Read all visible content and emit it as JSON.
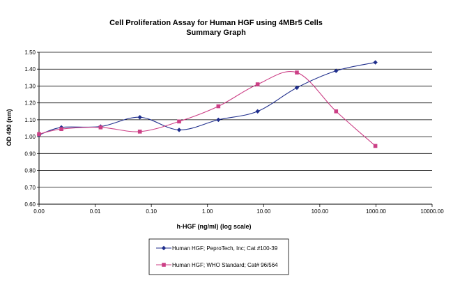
{
  "chart_data": {
    "type": "line",
    "title": "Cell Proliferation Assay for Human HGF using 4MBr5 Cells",
    "subtitle": "Summary Graph",
    "xlabel": "h-HGF (ng/ml) (log scale)",
    "ylabel": "OD 490 (nm)",
    "x_scale": "log",
    "x_tick_labels": [
      "0.00",
      "0.01",
      "0.10",
      "1.00",
      "10.00",
      "100.00",
      "1000.00",
      "10000.00"
    ],
    "x_ticks": [
      0.001,
      0.01,
      0.1,
      1,
      10,
      100,
      1000,
      10000
    ],
    "xlim": [
      0.001,
      10000
    ],
    "y_tick_labels": [
      "0.60",
      "0.70",
      "0.80",
      "0.90",
      "1.00",
      "1.10",
      "1.20",
      "1.30",
      "1.40",
      "1.50"
    ],
    "y_ticks": [
      0.6,
      0.7,
      0.8,
      0.9,
      1.0,
      1.1,
      1.2,
      1.3,
      1.4,
      1.5
    ],
    "ylim": [
      0.6,
      1.5
    ],
    "grid": "horizontal",
    "legend_position": "bottom",
    "series": [
      {
        "name": "Human HGF; PeproTech, Inc; Cat #100-39",
        "color": "#1f2e8c",
        "marker": "diamond",
        "x": [
          0.001,
          0.0025,
          0.0125,
          0.0625,
          0.3125,
          1.5625,
          7.8125,
          39.0625,
          195.3125,
          976.5625
        ],
        "y": [
          1.01,
          1.055,
          1.06,
          1.115,
          1.04,
          1.1,
          1.15,
          1.29,
          1.39,
          1.44
        ]
      },
      {
        "name": "Human HGF; WHO Standard; Cat# 96/564",
        "color": "#cc3f86",
        "marker": "square",
        "x": [
          0.001,
          0.0025,
          0.0125,
          0.0625,
          0.3125,
          1.5625,
          7.8125,
          39.0625,
          195.3125,
          976.5625
        ],
        "y": [
          1.015,
          1.045,
          1.055,
          1.03,
          1.09,
          1.18,
          1.31,
          1.38,
          1.15,
          0.945
        ]
      }
    ]
  }
}
